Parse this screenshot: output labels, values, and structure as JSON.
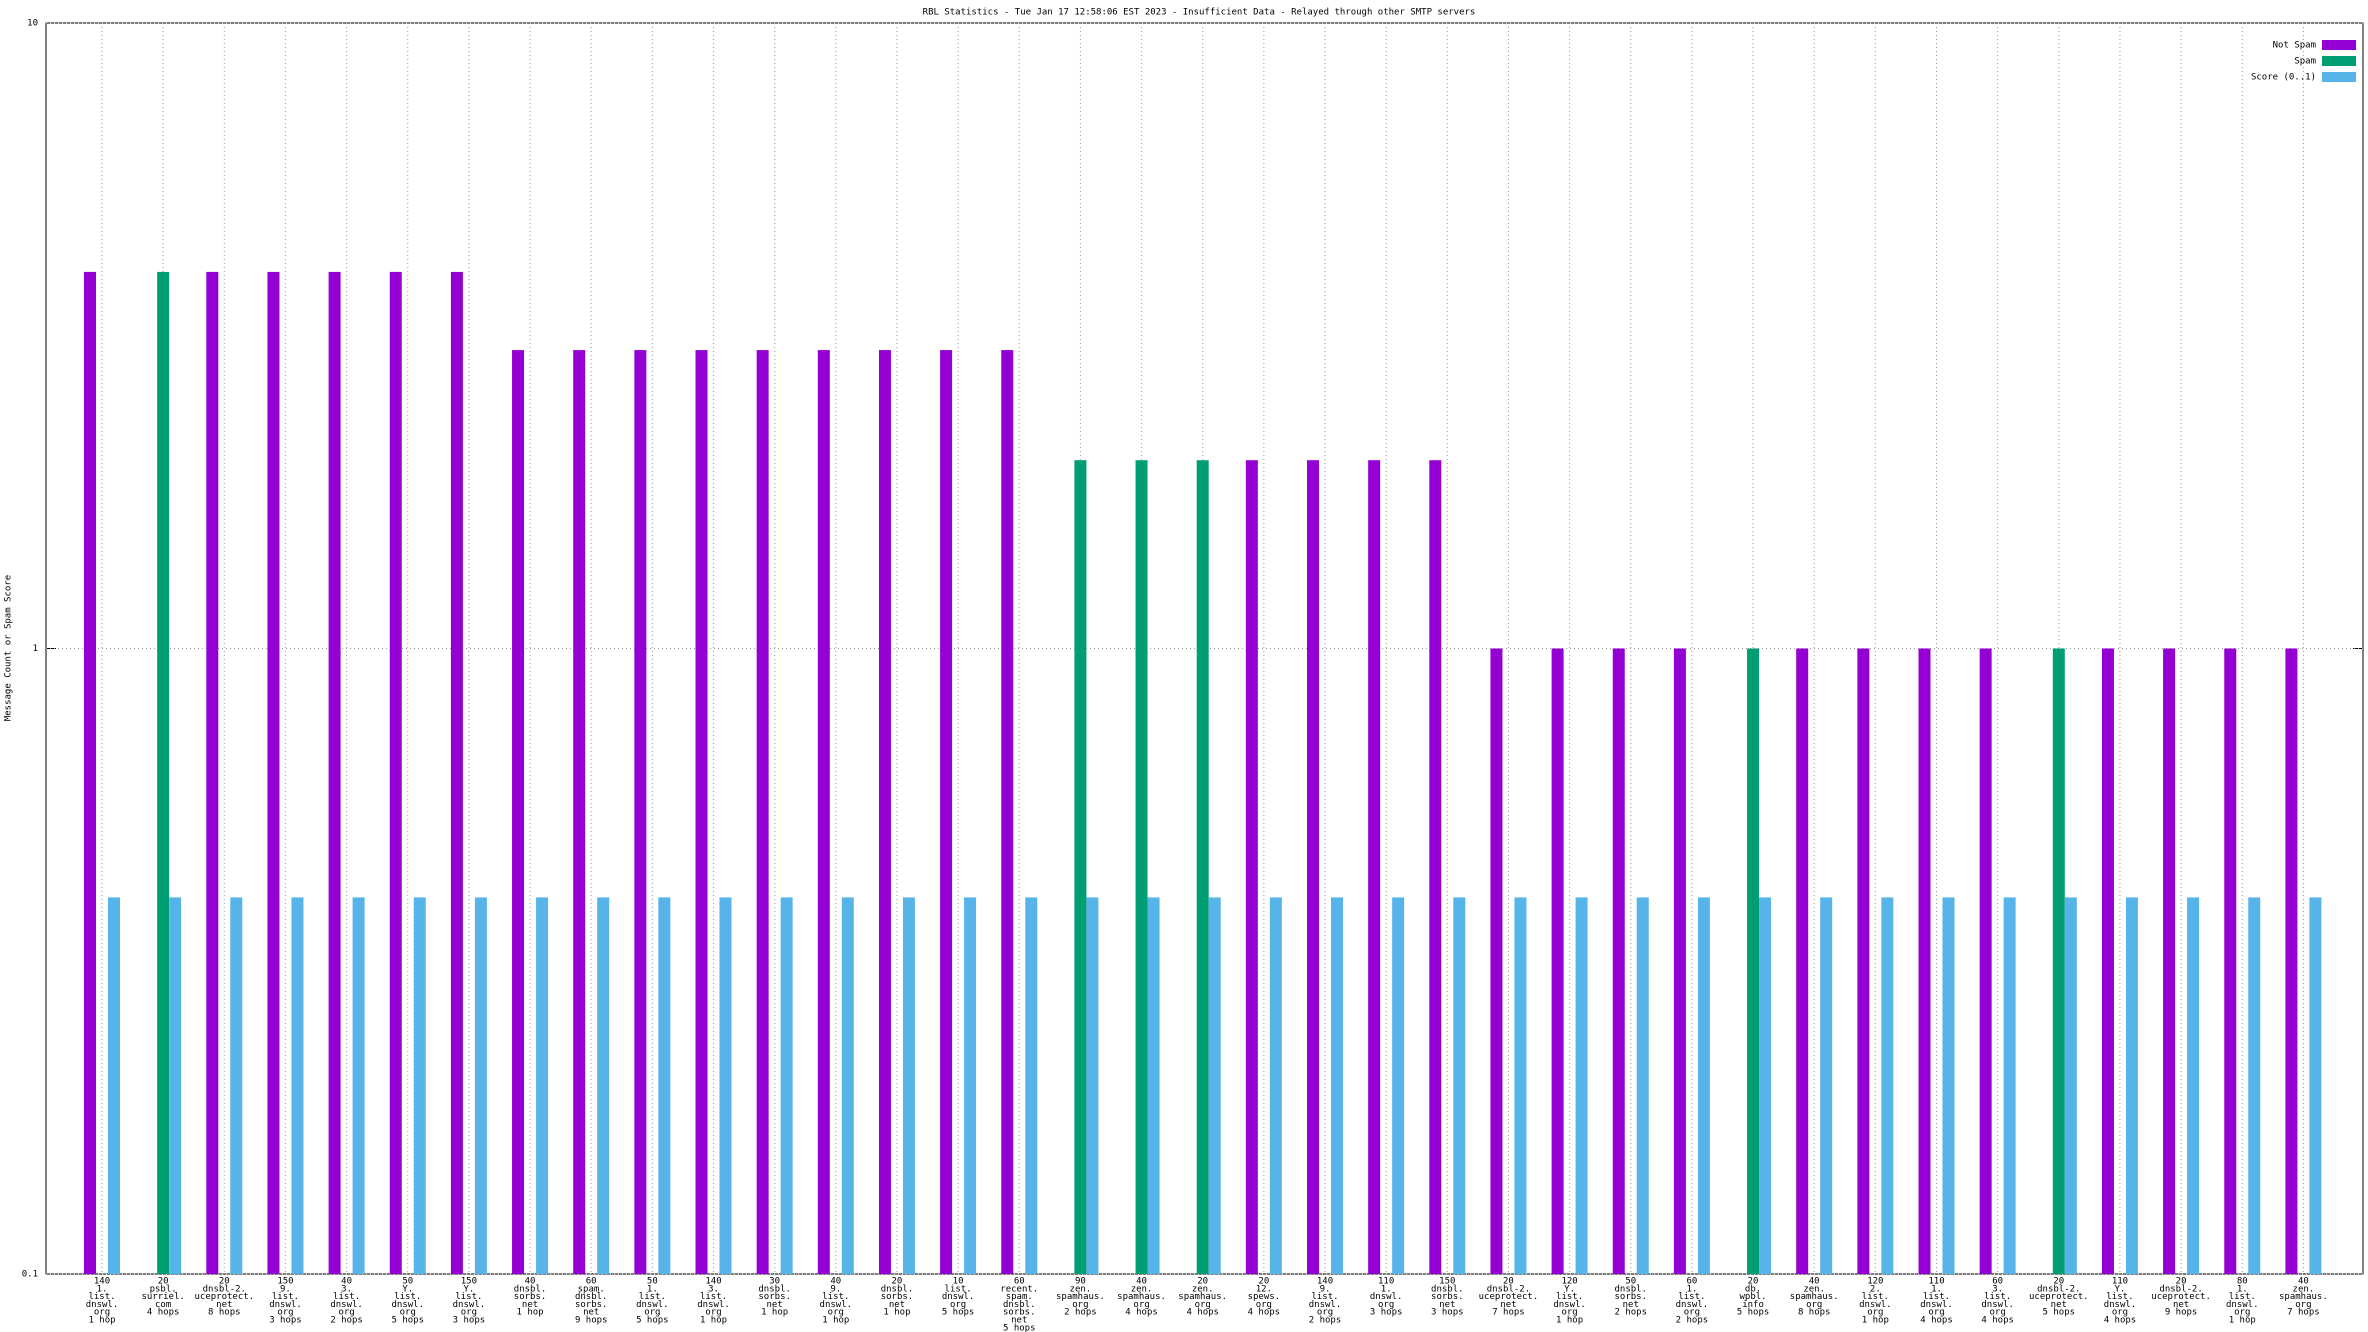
{
  "chart_data": {
    "type": "bar",
    "title": "RBL Statistics - Tue Jan 17 12:58:06 EST 2023 - Insufficient Data - Relayed through other SMTP servers",
    "y_label": "Message Count or Spam Score",
    "log_scale": true,
    "ylim": [
      0.1,
      10
    ],
    "yticks": [
      0.1,
      1,
      10
    ],
    "grid": true,
    "legend": "top-right",
    "categories": [
      [
        "140",
        "1.",
        "list.",
        "dnswl.",
        "org",
        "1 hop"
      ],
      [
        "20",
        "psbl.",
        "surriel.",
        "com",
        "4 hops"
      ],
      [
        "20",
        "dnsbl-2.",
        "uceprotect.",
        "net",
        "8 hops"
      ],
      [
        "150",
        "9.",
        "list.",
        "dnswl.",
        "org",
        "3 hops"
      ],
      [
        "40",
        "3.",
        "list.",
        "dnswl.",
        "org",
        "2 hops"
      ],
      [
        "50",
        "Y.",
        "list.",
        "dnswl.",
        "org",
        "5 hops"
      ],
      [
        "150",
        "Y.",
        "list.",
        "dnswl.",
        "org",
        "3 hops"
      ],
      [
        "40",
        "dnsbl.",
        "sorbs.",
        "net",
        "1 hop"
      ],
      [
        "60",
        "spam.",
        "dnsbl.",
        "sorbs.",
        "net",
        "9 hops"
      ],
      [
        "50",
        "1.",
        "list.",
        "dnswl.",
        "org",
        "5 hops"
      ],
      [
        "140",
        "3.",
        "list.",
        "dnswl.",
        "org",
        "1 hop"
      ],
      [
        "30",
        "dnsbl.",
        "sorbs.",
        "net",
        "1 hop"
      ],
      [
        "40",
        "9.",
        "list.",
        "dnswl.",
        "org",
        "1 hop"
      ],
      [
        "20",
        "dnsbl.",
        "sorbs.",
        "net",
        "1 hop"
      ],
      [
        "10",
        "list.",
        "dnswl.",
        "org",
        "5 hops"
      ],
      [
        "60",
        "recent.",
        "spam.",
        "dnsbl.",
        "sorbs.",
        "net",
        "5 hops"
      ],
      [
        "90",
        "zen.",
        "spamhaus.",
        "org",
        "2 hops"
      ],
      [
        "40",
        "zen.",
        "spamhaus.",
        "org",
        "4 hops"
      ],
      [
        "20",
        "zen.",
        "spamhaus.",
        "org",
        "4 hops"
      ],
      [
        "20",
        "12.",
        "spews.",
        "org",
        "4 hops"
      ],
      [
        "140",
        "9.",
        "list.",
        "dnswl.",
        "org",
        "2 hops"
      ],
      [
        "110",
        "1.",
        "dnswl.",
        "org",
        "3 hops"
      ],
      [
        "150",
        "dnsbl.",
        "sorbs.",
        "net",
        "3 hops"
      ],
      [
        "20",
        "dnsbl-2.",
        "uceprotect.",
        "net",
        "7 hops"
      ],
      [
        "120",
        "Y.",
        "list.",
        "dnswl.",
        "org",
        "1 hop"
      ],
      [
        "50",
        "dnsbl.",
        "sorbs.",
        "net",
        "2 hops"
      ],
      [
        "60",
        "1.",
        "list.",
        "dnswl.",
        "org",
        "2 hops"
      ],
      [
        "20",
        "db.",
        "wpbl.",
        "info",
        "5 hops"
      ],
      [
        "40",
        "zen.",
        "spamhaus.",
        "org",
        "8 hops"
      ],
      [
        "120",
        "2.",
        "list.",
        "dnswl.",
        "org",
        "1 hop"
      ],
      [
        "110",
        "1.",
        "list.",
        "dnswl.",
        "org",
        "4 hops"
      ],
      [
        "60",
        "3.",
        "list.",
        "dnswl.",
        "org",
        "4 hops"
      ],
      [
        "20",
        "dnsbl-2.",
        "uceprotect.",
        "net",
        "5 hops"
      ],
      [
        "110",
        "Y.",
        "list.",
        "dnswl.",
        "org",
        "4 hops"
      ],
      [
        "20",
        "dnsbl-2.",
        "uceprotect.",
        "net",
        "9 hops"
      ],
      [
        "80",
        "1.",
        "list.",
        "dnswl.",
        "org",
        "1 hop"
      ],
      [
        "40",
        "zen.",
        "spamhaus.",
        "org",
        "7 hops"
      ]
    ],
    "series": [
      {
        "name": "Not Spam",
        "color": "#9400d3",
        "values": [
          4,
          null,
          4,
          4,
          4,
          4,
          4,
          3,
          3,
          3,
          3,
          3,
          3,
          3,
          3,
          3,
          null,
          null,
          null,
          2,
          2,
          2,
          2,
          1,
          1,
          1,
          1,
          null,
          1,
          1,
          1,
          1,
          null,
          1,
          1,
          1,
          1
        ]
      },
      {
        "name": "Spam",
        "color": "#009e73",
        "values": [
          null,
          4,
          null,
          null,
          null,
          null,
          null,
          null,
          null,
          null,
          null,
          null,
          null,
          null,
          null,
          null,
          2,
          2,
          2,
          null,
          null,
          null,
          null,
          null,
          null,
          null,
          null,
          1,
          null,
          null,
          null,
          null,
          1,
          null,
          null,
          null,
          null
        ]
      },
      {
        "name": "Score (0..1)",
        "color": "#56b4e9",
        "values": [
          0.4,
          0.4,
          0.4,
          0.4,
          0.4,
          0.4,
          0.4,
          0.4,
          0.4,
          0.4,
          0.4,
          0.4,
          0.4,
          0.4,
          0.4,
          0.4,
          0.4,
          0.4,
          0.4,
          0.4,
          0.4,
          0.4,
          0.4,
          0.4,
          0.4,
          0.4,
          0.4,
          0.4,
          0.4,
          0.4,
          0.4,
          0.4,
          0.4,
          0.4,
          0.4,
          0.4,
          0.4
        ]
      }
    ]
  }
}
